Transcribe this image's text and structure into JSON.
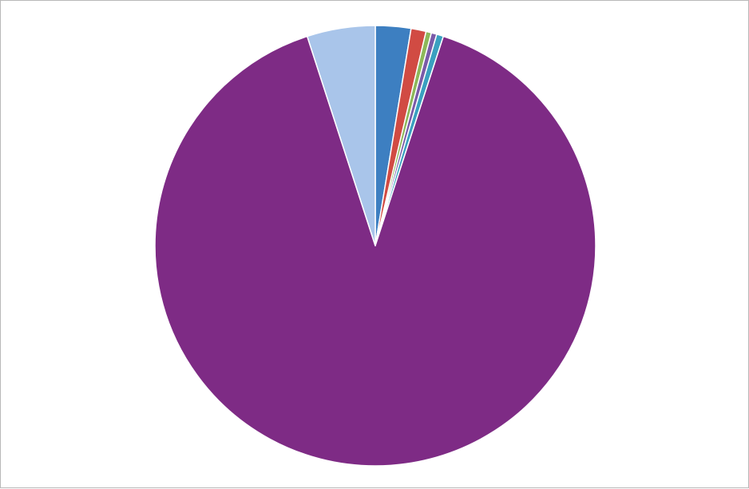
{
  "chart_data": {
    "type": "pie",
    "title": "",
    "legend": "none",
    "start_angle_deg": 0,
    "direction": "clockwise",
    "slices": [
      {
        "value": 2.6,
        "color": "#3d7fc1"
      },
      {
        "value": 1.1,
        "color": "#d14b43"
      },
      {
        "value": 0.4,
        "color": "#8db85a"
      },
      {
        "value": 0.4,
        "color": "#7a5aa8"
      },
      {
        "value": 0.5,
        "color": "#3aa0c0"
      },
      {
        "value": 90.0,
        "color": "#7e2b85"
      },
      {
        "value": 5.0,
        "color": "#a9c5ea"
      }
    ]
  }
}
